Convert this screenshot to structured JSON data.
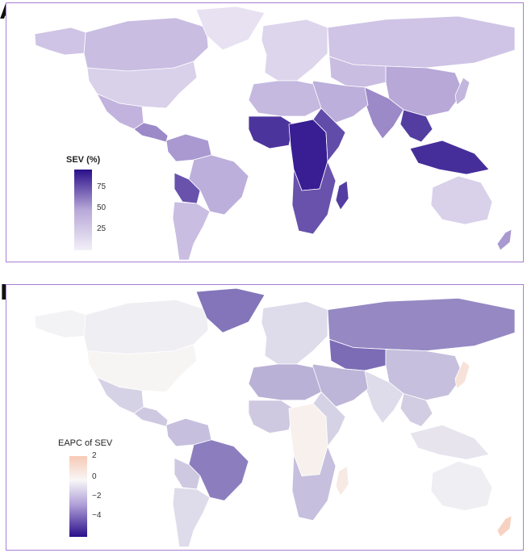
{
  "panels": [
    {
      "letter": "A",
      "legend_title": "SEV (%)",
      "legend_ticks": [
        "75",
        "50",
        "25"
      ],
      "colors": {
        "low": "#f3eff8",
        "mid": "#b7a8d8",
        "high": "#2a0f8a"
      },
      "regions": [
        {
          "name": "Canada",
          "level": 0.35
        },
        {
          "name": "Alaska",
          "level": 0.3
        },
        {
          "name": "Greenland",
          "level": 0.1
        },
        {
          "name": "United States",
          "level": 0.22
        },
        {
          "name": "Mexico",
          "level": 0.42
        },
        {
          "name": "Central America",
          "level": 0.6
        },
        {
          "name": "Colombia-Venezuela",
          "level": 0.55
        },
        {
          "name": "Brazil",
          "level": 0.45
        },
        {
          "name": "Bolivia",
          "level": 0.78
        },
        {
          "name": "Argentina",
          "level": 0.35
        },
        {
          "name": "Europe",
          "level": 0.18
        },
        {
          "name": "Russia",
          "level": 0.3
        },
        {
          "name": "Central Asia",
          "level": 0.35
        },
        {
          "name": "China",
          "level": 0.5
        },
        {
          "name": "India",
          "level": 0.6
        },
        {
          "name": "Southeast Asia",
          "level": 0.85
        },
        {
          "name": "Indonesia",
          "level": 0.9
        },
        {
          "name": "Middle East",
          "level": 0.45
        },
        {
          "name": "North Africa",
          "level": 0.38
        },
        {
          "name": "West Africa",
          "level": 0.88
        },
        {
          "name": "Central Africa",
          "level": 0.95
        },
        {
          "name": "East Africa",
          "level": 0.8
        },
        {
          "name": "Southern Africa",
          "level": 0.78
        },
        {
          "name": "Madagascar",
          "level": 0.85
        },
        {
          "name": "Australia",
          "level": 0.22
        },
        {
          "name": "Japan",
          "level": 0.4
        },
        {
          "name": "New Zealand",
          "level": 0.55
        }
      ]
    },
    {
      "letter": "B",
      "legend_title": "EAPC of SEV",
      "legend_ticks": [
        "2",
        "0",
        "−2",
        "−4"
      ],
      "colors": {
        "pos": "#f7c9b4",
        "zero": "#f7f7f7",
        "neg": "#2a0f8a"
      },
      "regions": [
        {
          "name": "Canada",
          "level": -0.2
        },
        {
          "name": "Alaska",
          "level": -0.1
        },
        {
          "name": "Greenland",
          "level": -2.8
        },
        {
          "name": "United States",
          "level": 0.1
        },
        {
          "name": "Mexico",
          "level": -0.8
        },
        {
          "name": "Central America",
          "level": -1.0
        },
        {
          "name": "Colombia-Venezuela",
          "level": -1.2
        },
        {
          "name": "Brazil",
          "level": -2.6
        },
        {
          "name": "Bolivia",
          "level": -1.0
        },
        {
          "name": "Argentina",
          "level": -0.6
        },
        {
          "name": "Europe",
          "level": -0.6
        },
        {
          "name": "Russia",
          "level": -2.4
        },
        {
          "name": "Central Asia",
          "level": -3.0
        },
        {
          "name": "China",
          "level": -1.2
        },
        {
          "name": "India",
          "level": -0.6
        },
        {
          "name": "Southeast Asia",
          "level": -0.9
        },
        {
          "name": "Indonesia",
          "level": -0.4
        },
        {
          "name": "Middle East",
          "level": -1.4
        },
        {
          "name": "North Africa",
          "level": -1.5
        },
        {
          "name": "West Africa",
          "level": -1.0
        },
        {
          "name": "Central Africa",
          "level": 0.3
        },
        {
          "name": "East Africa",
          "level": -0.8
        },
        {
          "name": "Southern Africa",
          "level": -1.2
        },
        {
          "name": "Madagascar",
          "level": 0.6
        },
        {
          "name": "Australia",
          "level": -0.2
        },
        {
          "name": "Japan",
          "level": 0.9
        },
        {
          "name": "New Zealand",
          "level": 1.6
        }
      ]
    }
  ]
}
